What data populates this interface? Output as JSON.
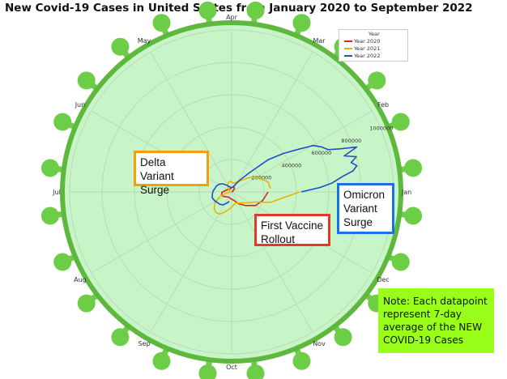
{
  "chart_data": {
    "type": "line",
    "projection": "polar",
    "title": "New Covid-19 Cases in United States from January 2020 to September 2022",
    "angular_axis": {
      "direction": "counterclockwise",
      "start": "Jan at 3 o'clock",
      "ticks": [
        "Jan",
        "Feb",
        "Mar",
        "Apr",
        "May",
        "Jun",
        "Jul",
        "Aug",
        "Sep",
        "Oct",
        "Nov",
        "Dec"
      ]
    },
    "radial_axis": {
      "range": [
        0,
        1000000
      ],
      "ticks": [
        200000,
        400000,
        600000,
        800000,
        1000000
      ],
      "tick_labels": [
        "200000",
        "400000",
        "600000",
        "800000",
        "1000000"
      ]
    },
    "grid": true,
    "legend": {
      "title": "Year",
      "position": "top-right",
      "entries": [
        {
          "label": "Year 2020",
          "color": "#d62728"
        },
        {
          "label": "Year 2021",
          "color": "#e8b400"
        },
        {
          "label": "Year 2022",
          "color": "#1f4fc9"
        }
      ]
    },
    "series": [
      {
        "name": "Year 2020",
        "color": "#d62728",
        "points": [
          [
            10,
            200
          ],
          [
            20,
            1500
          ],
          [
            35,
            10000
          ],
          [
            50,
            27000
          ],
          [
            65,
            32000
          ],
          [
            80,
            30000
          ],
          [
            95,
            25000
          ],
          [
            110,
            22000
          ],
          [
            125,
            21000
          ],
          [
            140,
            22000
          ],
          [
            155,
            30000
          ],
          [
            170,
            40000
          ],
          [
            185,
            60000
          ],
          [
            200,
            65000
          ],
          [
            215,
            55000
          ],
          [
            230,
            42000
          ],
          [
            245,
            37000
          ],
          [
            260,
            40000
          ],
          [
            275,
            45000
          ],
          [
            290,
            55000
          ],
          [
            305,
            85000
          ],
          [
            320,
            120000
          ],
          [
            335,
            170000
          ],
          [
            350,
            200000
          ],
          [
            365,
            225000
          ]
        ]
      },
      {
        "name": "Year 2021",
        "color": "#e8b400",
        "points": [
          [
            5,
            240000
          ],
          [
            15,
            235000
          ],
          [
            28,
            190000
          ],
          [
            40,
            140000
          ],
          [
            52,
            90000
          ],
          [
            65,
            65000
          ],
          [
            78,
            55000
          ],
          [
            90,
            60000
          ],
          [
            100,
            65000
          ],
          [
            112,
            60000
          ],
          [
            122,
            50000
          ],
          [
            135,
            30000
          ],
          [
            150,
            15000
          ],
          [
            160,
            13000
          ],
          [
            175,
            13000
          ],
          [
            185,
            16000
          ],
          [
            195,
            40000
          ],
          [
            205,
            80000
          ],
          [
            215,
            120000
          ],
          [
            225,
            145000
          ],
          [
            235,
            160000
          ],
          [
            245,
            155000
          ],
          [
            255,
            130000
          ],
          [
            270,
            100000
          ],
          [
            280,
            85000
          ],
          [
            290,
            75000
          ],
          [
            300,
            75000
          ],
          [
            310,
            85000
          ],
          [
            320,
            95000
          ],
          [
            330,
            120000
          ],
          [
            340,
            150000
          ],
          [
            350,
            250000
          ],
          [
            365,
            420000
          ]
        ]
      },
      {
        "name": "Year 2022",
        "color": "#1f4fc9",
        "points": [
          [
            0,
            430000
          ],
          [
            3,
            550000
          ],
          [
            5,
            620000
          ],
          [
            8,
            690000
          ],
          [
            10,
            760000
          ],
          [
            12,
            790000
          ],
          [
            14,
            760000
          ],
          [
            16,
            800000
          ],
          [
            18,
            730000
          ],
          [
            20,
            820000
          ],
          [
            22,
            720000
          ],
          [
            24,
            650000
          ],
          [
            27,
            620000
          ],
          [
            30,
            580000
          ],
          [
            33,
            490000
          ],
          [
            37,
            400000
          ],
          [
            42,
            300000
          ],
          [
            48,
            160000
          ],
          [
            55,
            95000
          ],
          [
            62,
            60000
          ],
          [
            70,
            38000
          ],
          [
            80,
            30000
          ],
          [
            90,
            27000
          ],
          [
            100,
            28000
          ],
          [
            110,
            33000
          ],
          [
            120,
            40000
          ],
          [
            130,
            55000
          ],
          [
            140,
            75000
          ],
          [
            150,
            90000
          ],
          [
            160,
            100000
          ],
          [
            170,
            105000
          ],
          [
            180,
            115000
          ],
          [
            190,
            120000
          ],
          [
            200,
            125000
          ],
          [
            210,
            118000
          ],
          [
            220,
            110000
          ],
          [
            230,
            105000
          ],
          [
            240,
            95000
          ],
          [
            250,
            75000
          ],
          [
            260,
            60000
          ]
        ]
      }
    ]
  },
  "annotations": {
    "delta": "Delta Variant Surge",
    "omicron": "Omicron Variant Surge",
    "vaccine": "First Vaccine Rollout",
    "note": "Note: Each datapoint represent 7-day average of the NEW COVID-19 Cases"
  },
  "colors": {
    "plot_fill": "#c8f5c8",
    "virus_green": "#6ccd47",
    "virus_outline": "#5db83d",
    "delta_border": "#f5a00a",
    "omicron_border": "#1873e8",
    "vaccine_border": "#e23a27",
    "note_fill": "#99ff1a"
  }
}
